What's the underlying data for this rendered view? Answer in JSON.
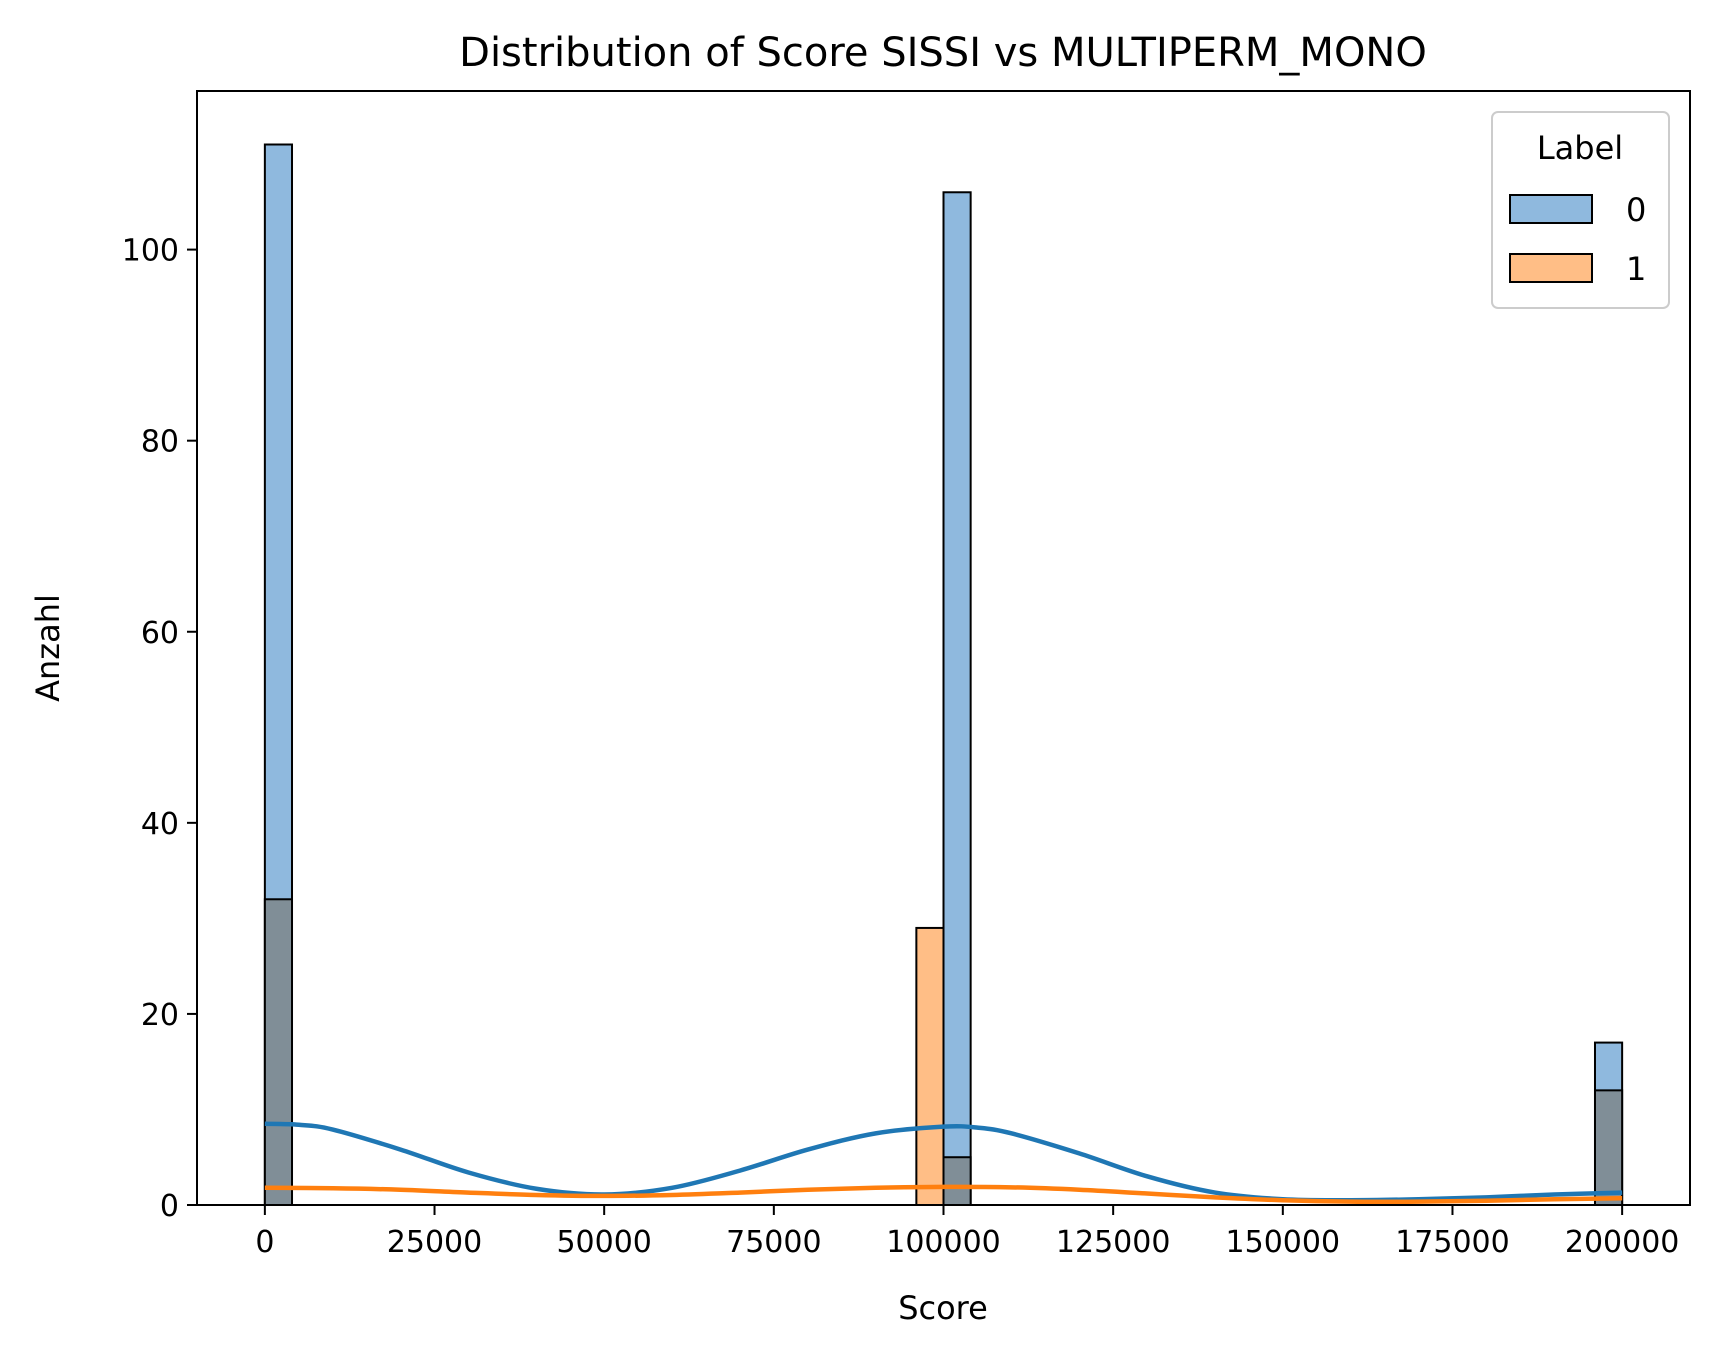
{
  "chart_data": {
    "type": "bar",
    "title": "Distribution of Score SISSI vs MULTIPERM_MONO",
    "xlabel": "Score",
    "ylabel": "Anzahl",
    "xlim": [
      -10000,
      210000
    ],
    "ylim": [
      0,
      116.6
    ],
    "xticks": [
      0,
      25000,
      50000,
      75000,
      100000,
      125000,
      150000,
      175000,
      200000
    ],
    "xtick_labels": [
      "0",
      "25000",
      "50000",
      "75000",
      "100000",
      "125000",
      "150000",
      "175000",
      "200000"
    ],
    "yticks": [
      0,
      20,
      40,
      60,
      80,
      100
    ],
    "ytick_labels": [
      "0",
      "20",
      "40",
      "60",
      "80",
      "100"
    ],
    "grid": false,
    "legend": {
      "title": "Label",
      "placement": "top-right"
    },
    "bin_width": 4000,
    "series": [
      {
        "name": "0",
        "color": "#1f77b4",
        "fill": "#8fb9de",
        "bins": [
          {
            "x0": 0,
            "x1": 4000,
            "count": 111
          },
          {
            "x0": 100000,
            "x1": 104000,
            "count": 106
          },
          {
            "x0": 196000,
            "x1": 200000,
            "count": 17
          }
        ],
        "kde": [
          [
            0,
            8.5
          ],
          [
            5000,
            8.4
          ],
          [
            10000,
            7.9
          ],
          [
            20000,
            5.8
          ],
          [
            30000,
            3.4
          ],
          [
            40000,
            1.7
          ],
          [
            50000,
            1.1
          ],
          [
            60000,
            1.8
          ],
          [
            70000,
            3.6
          ],
          [
            80000,
            5.8
          ],
          [
            90000,
            7.5
          ],
          [
            100000,
            8.2
          ],
          [
            105000,
            8.1
          ],
          [
            110000,
            7.5
          ],
          [
            120000,
            5.4
          ],
          [
            130000,
            3.0
          ],
          [
            140000,
            1.3
          ],
          [
            150000,
            0.6
          ],
          [
            160000,
            0.5
          ],
          [
            170000,
            0.6
          ],
          [
            180000,
            0.8
          ],
          [
            190000,
            1.1
          ],
          [
            200000,
            1.3
          ]
        ]
      },
      {
        "name": "1",
        "color": "#ff7f0e",
        "fill": "#ffbe86",
        "bins": [
          {
            "x0": 0,
            "x1": 4000,
            "count": 32
          },
          {
            "x0": 96000,
            "x1": 100000,
            "count": 29
          },
          {
            "x0": 100000,
            "x1": 104000,
            "count": 5
          },
          {
            "x0": 196000,
            "x1": 200000,
            "count": 12
          }
        ],
        "kde": [
          [
            0,
            1.8
          ],
          [
            10000,
            1.75
          ],
          [
            20000,
            1.6
          ],
          [
            30000,
            1.3
          ],
          [
            40000,
            1.05
          ],
          [
            50000,
            0.95
          ],
          [
            60000,
            1.05
          ],
          [
            70000,
            1.3
          ],
          [
            80000,
            1.6
          ],
          [
            90000,
            1.8
          ],
          [
            100000,
            1.9
          ],
          [
            110000,
            1.85
          ],
          [
            120000,
            1.6
          ],
          [
            130000,
            1.2
          ],
          [
            140000,
            0.8
          ],
          [
            150000,
            0.5
          ],
          [
            160000,
            0.35
          ],
          [
            170000,
            0.35
          ],
          [
            180000,
            0.45
          ],
          [
            190000,
            0.6
          ],
          [
            200000,
            0.7
          ]
        ]
      }
    ],
    "overlap_fill": "#808e97"
  }
}
